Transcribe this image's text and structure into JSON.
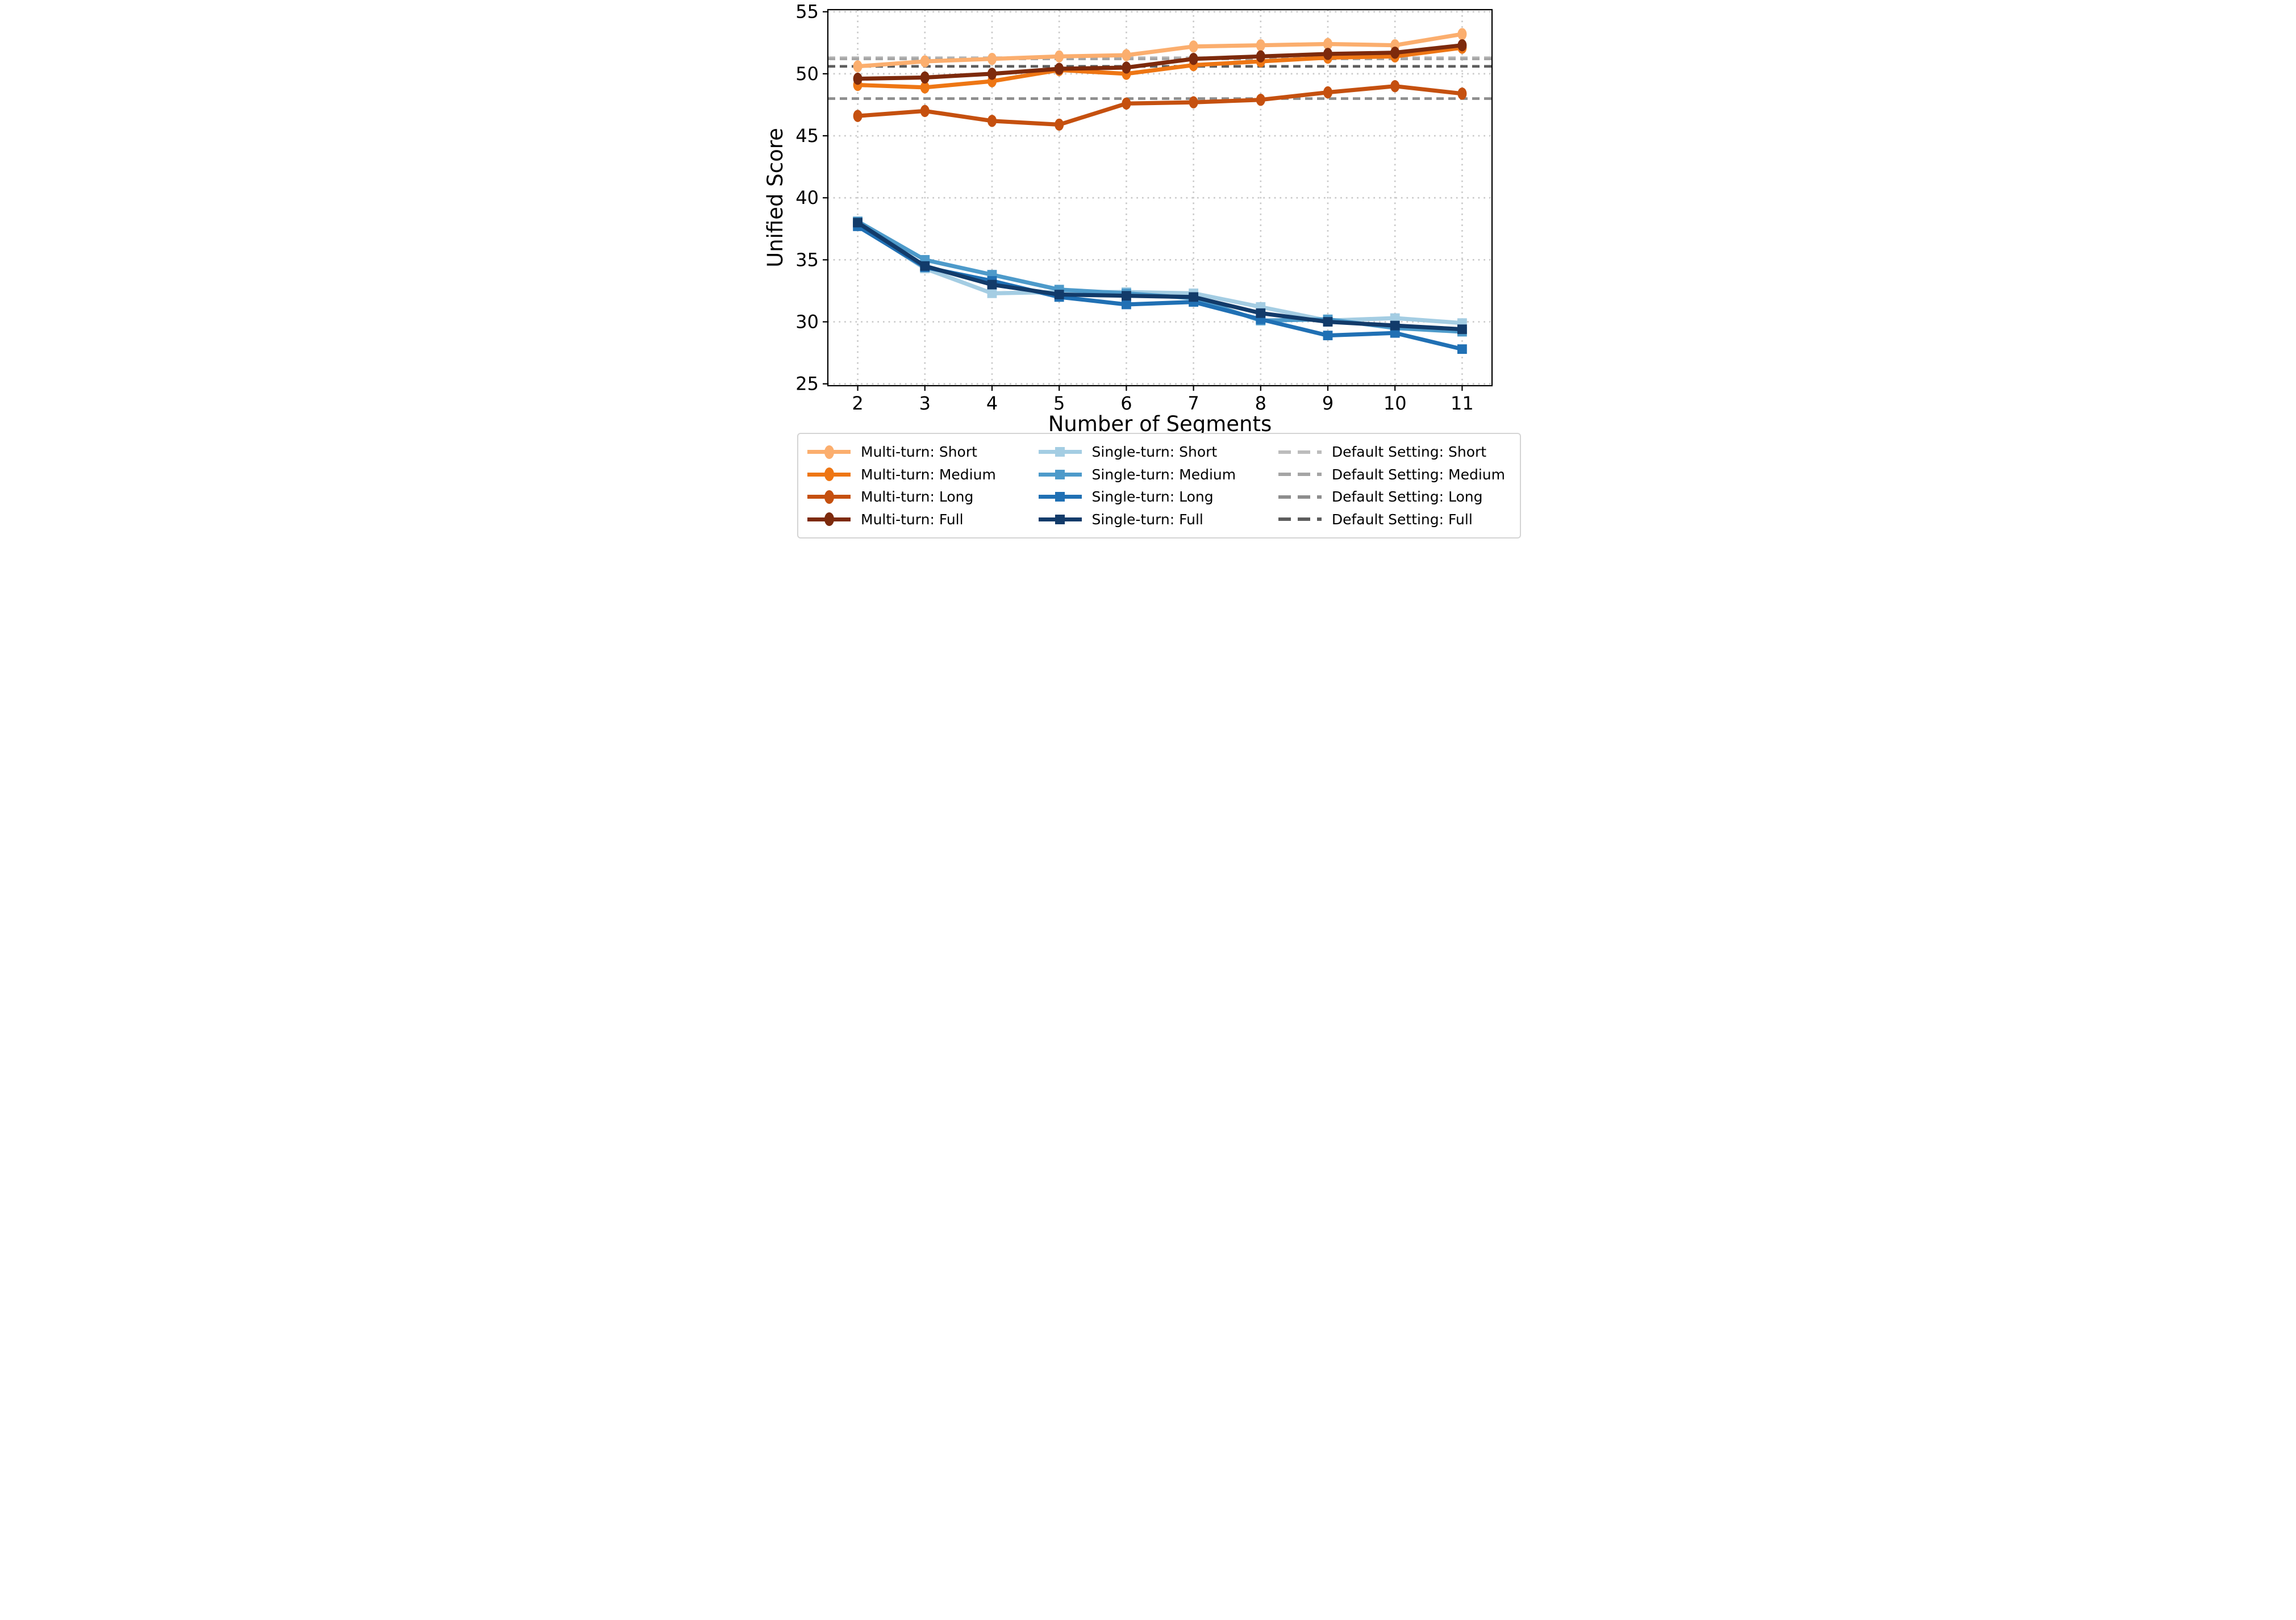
{
  "chart_data": {
    "type": "line",
    "title": "",
    "xlabel": "Number of Segments",
    "ylabel": "Unified Score",
    "x": [
      2,
      3,
      4,
      5,
      6,
      7,
      8,
      9,
      10,
      11
    ],
    "xticks": [
      "2",
      "3",
      "4",
      "5",
      "6",
      "7",
      "8",
      "9",
      "10",
      "11"
    ],
    "yticks": [
      "25",
      "30",
      "35",
      "40",
      "45",
      "50",
      "55"
    ],
    "ytick_values": [
      25,
      30,
      35,
      40,
      45,
      50,
      55
    ],
    "xlim": [
      1.555,
      11.445
    ],
    "ylim": [
      24.85,
      55.17
    ],
    "grid": {
      "show": true,
      "color": "#c9c9c9",
      "style": "dotted"
    },
    "axis_color": "#000000",
    "series": [
      {
        "name": "Single-turn: Short",
        "group": "single-turn",
        "marker": "square",
        "color": "#a4cde3",
        "values": [
          37.8,
          34.3,
          32.3,
          32.4,
          32.4,
          32.3,
          31.2,
          30.1,
          30.3,
          29.9
        ]
      },
      {
        "name": "Single-turn: Medium",
        "group": "single-turn",
        "marker": "square",
        "color": "#4d9aca",
        "values": [
          38.1,
          35.0,
          33.8,
          32.6,
          32.3,
          31.9,
          30.1,
          30.2,
          29.5,
          29.2
        ]
      },
      {
        "name": "Single-turn: Long",
        "group": "single-turn",
        "marker": "square",
        "color": "#2070b4",
        "values": [
          37.7,
          34.4,
          33.3,
          32.0,
          31.4,
          31.6,
          30.2,
          28.9,
          29.1,
          27.8
        ]
      },
      {
        "name": "Single-turn: Full",
        "group": "single-turn",
        "marker": "square",
        "color": "#123b6a",
        "values": [
          38.0,
          34.5,
          33.0,
          32.2,
          32.1,
          32.0,
          30.7,
          30.0,
          29.7,
          29.4
        ]
      },
      {
        "name": "Multi-turn: Short",
        "group": "multi-turn",
        "marker": "circle",
        "color": "#fbae6e",
        "values": [
          50.6,
          51.0,
          51.2,
          51.4,
          51.5,
          52.2,
          52.3,
          52.4,
          52.3,
          53.2
        ]
      },
      {
        "name": "Multi-turn: Medium",
        "group": "multi-turn",
        "marker": "circle",
        "color": "#ee7614",
        "values": [
          49.1,
          48.9,
          49.4,
          50.3,
          50.0,
          50.7,
          51.0,
          51.3,
          51.4,
          52.1
        ]
      },
      {
        "name": "Multi-turn: Long",
        "group": "multi-turn",
        "marker": "circle",
        "color": "#c5500f",
        "values": [
          46.6,
          47.0,
          46.2,
          45.9,
          47.6,
          47.7,
          47.9,
          48.5,
          49.0,
          48.4
        ]
      },
      {
        "name": "Multi-turn: Full",
        "group": "multi-turn",
        "marker": "circle",
        "color": "#7d2a0c",
        "values": [
          49.6,
          49.7,
          50.0,
          50.4,
          50.5,
          51.2,
          51.4,
          51.6,
          51.7,
          52.3
        ]
      }
    ],
    "reference_lines": [
      {
        "name": "Default Setting: Short",
        "color": "#bcbcbc",
        "y": 51.3
      },
      {
        "name": "Default Setting: Medium",
        "color": "#a5a5a5",
        "y": 51.2
      },
      {
        "name": "Default Setting: Long",
        "color": "#8d8d8d",
        "y": 48.0
      },
      {
        "name": "Default Setting: Full",
        "color": "#5d5d5d",
        "y": 50.6
      }
    ],
    "legend": {
      "position": "bottom",
      "columns": [
        {
          "marker": "circle",
          "entries": [
            {
              "label": "Multi-turn: Short",
              "color": "#fbae6e"
            },
            {
              "label": "Multi-turn: Medium",
              "color": "#ee7614"
            },
            {
              "label": "Multi-turn: Long",
              "color": "#c5500f"
            },
            {
              "label": "Multi-turn: Full",
              "color": "#7d2a0c"
            }
          ]
        },
        {
          "marker": "square",
          "entries": [
            {
              "label": "Single-turn: Short",
              "color": "#a4cde3"
            },
            {
              "label": "Single-turn: Medium",
              "color": "#4d9aca"
            },
            {
              "label": "Single-turn: Long",
              "color": "#2070b4"
            },
            {
              "label": "Single-turn: Full",
              "color": "#123b6a"
            }
          ]
        },
        {
          "marker": "dash",
          "entries": [
            {
              "label": "Default Setting: Short",
              "color": "#bcbcbc"
            },
            {
              "label": "Default Setting: Medium",
              "color": "#a5a5a5"
            },
            {
              "label": "Default Setting: Long",
              "color": "#8d8d8d"
            },
            {
              "label": "Default Setting: Full",
              "color": "#5d5d5d"
            }
          ]
        }
      ]
    }
  }
}
